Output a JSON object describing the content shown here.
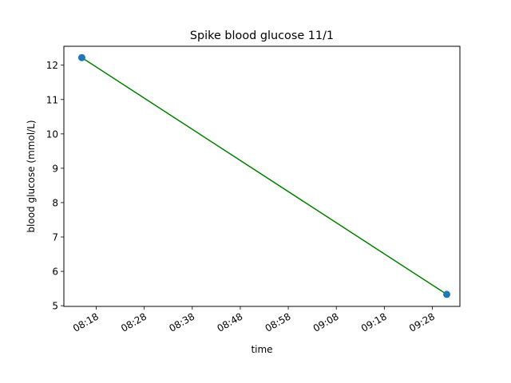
{
  "chart_data": {
    "type": "line",
    "title": "Spike blood glucose 11/1",
    "xlabel": "time",
    "ylabel": "blood glucose (mmol/L)",
    "x_ticks": [
      "08:18",
      "08:28",
      "08:38",
      "08:48",
      "08:58",
      "09:08",
      "09:18",
      "09:28"
    ],
    "y_ticks": [
      5,
      6,
      7,
      8,
      9,
      10,
      11,
      12
    ],
    "ylim": [
      4.98,
      12.55
    ],
    "grid": false,
    "series": [
      {
        "x": [
          "08:15",
          "09:31"
        ],
        "y": [
          12.22,
          5.33
        ],
        "line_color": "#008000",
        "marker_color": "#1f77b4"
      }
    ]
  }
}
